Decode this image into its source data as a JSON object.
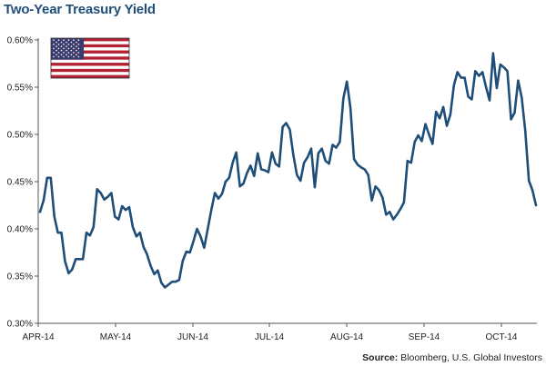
{
  "title": "Two-Year Treasury Yield",
  "source_label": "Source:",
  "source_text": "Bloomberg, U.S. Global Investors",
  "flag_icon": "us-flag-icon",
  "colors": {
    "line": "#1f4e79",
    "title": "#1f4e79",
    "axis": "#555555"
  },
  "chart_data": {
    "type": "line",
    "title": "Two-Year Treasury Yield",
    "xlabel": "",
    "ylabel": "",
    "ylim": [
      0.3,
      0.6
    ],
    "yticks": [
      "0.60%",
      "0.55%",
      "0.50%",
      "0.45%",
      "0.40%",
      "0.35%",
      "0.30%"
    ],
    "ytick_values": [
      0.6,
      0.55,
      0.5,
      0.45,
      0.4,
      0.35,
      0.3
    ],
    "xticks": [
      "APR-14",
      "MAY-14",
      "JUN-14",
      "JUL-14",
      "AUG-14",
      "SEP-14",
      "OCT-14"
    ],
    "grid": false,
    "legend": "none",
    "series": [
      {
        "values": [
          0.418,
          0.43,
          0.454,
          0.454,
          0.413,
          0.396,
          0.396,
          0.366,
          0.353,
          0.357,
          0.368,
          0.368,
          0.368,
          0.396,
          0.393,
          0.402,
          0.442,
          0.438,
          0.431,
          0.434,
          0.438,
          0.413,
          0.41,
          0.424,
          0.42,
          0.423,
          0.402,
          0.392,
          0.396,
          0.381,
          0.373,
          0.361,
          0.352,
          0.356,
          0.343,
          0.338,
          0.341,
          0.344,
          0.344,
          0.346,
          0.366,
          0.376,
          0.375,
          0.387,
          0.4,
          0.392,
          0.38,
          0.4,
          0.42,
          0.438,
          0.432,
          0.437,
          0.45,
          0.454,
          0.47,
          0.481,
          0.445,
          0.448,
          0.459,
          0.467,
          0.456,
          0.48,
          0.463,
          0.462,
          0.46,
          0.481,
          0.469,
          0.466,
          0.508,
          0.512,
          0.505,
          0.478,
          0.457,
          0.451,
          0.47,
          0.476,
          0.485,
          0.444,
          0.48,
          0.485,
          0.472,
          0.469,
          0.489,
          0.486,
          0.492,
          0.538,
          0.556,
          0.528,
          0.474,
          0.468,
          0.465,
          0.463,
          0.457,
          0.43,
          0.445,
          0.441,
          0.433,
          0.415,
          0.418,
          0.41,
          0.415,
          0.421,
          0.428,
          0.472,
          0.47,
          0.492,
          0.499,
          0.493,
          0.511,
          0.5,
          0.49,
          0.524,
          0.517,
          0.529,
          0.509,
          0.521,
          0.552,
          0.566,
          0.56,
          0.56,
          0.54,
          0.537,
          0.567,
          0.562,
          0.566,
          0.55,
          0.536,
          0.586,
          0.549,
          0.574,
          0.571,
          0.567,
          0.516,
          0.523,
          0.557,
          0.539,
          0.504,
          0.451,
          0.441,
          0.425
        ]
      }
    ]
  }
}
